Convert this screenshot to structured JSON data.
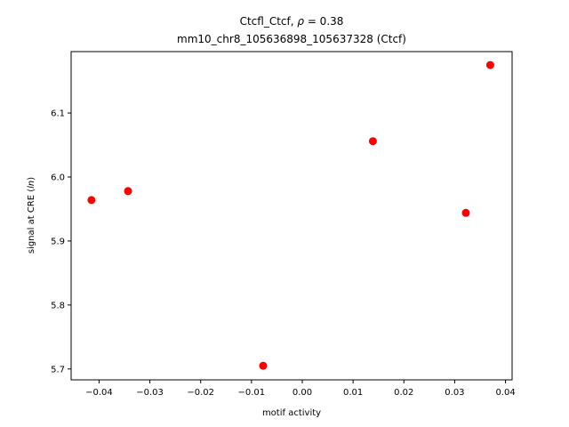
{
  "chart_data": {
    "type": "scatter",
    "title_line1": "Ctcfl_Ctcf, ρ = 0.38",
    "title_line2": "mm10_chr8_105636898_105637328 (Ctcf)",
    "xlabel": "motif activity",
    "ylabel": "signal at CRE (ln)",
    "xlim": [
      -0.0455,
      0.0413
    ],
    "ylim": [
      5.683,
      6.196
    ],
    "xticks": [
      -0.04,
      -0.03,
      -0.02,
      -0.01,
      0.0,
      0.01,
      0.02,
      0.03,
      0.04
    ],
    "xtick_labels": [
      "−0.04",
      "−0.03",
      "−0.02",
      "−0.01",
      "0.00",
      "0.01",
      "0.02",
      "0.03",
      "0.04"
    ],
    "yticks": [
      5.7,
      5.8,
      5.9,
      6.0,
      6.1
    ],
    "ytick_labels": [
      "5.7",
      "5.8",
      "5.9",
      "6.0",
      "6.1"
    ],
    "grid": false,
    "point_color": "#ff0000",
    "points": [
      {
        "x": -0.0415,
        "y": 5.964
      },
      {
        "x": -0.0343,
        "y": 5.978
      },
      {
        "x": -0.0077,
        "y": 5.705
      },
      {
        "x": 0.0139,
        "y": 6.056
      },
      {
        "x": 0.0322,
        "y": 5.944
      },
      {
        "x": 0.037,
        "y": 6.175
      }
    ]
  }
}
